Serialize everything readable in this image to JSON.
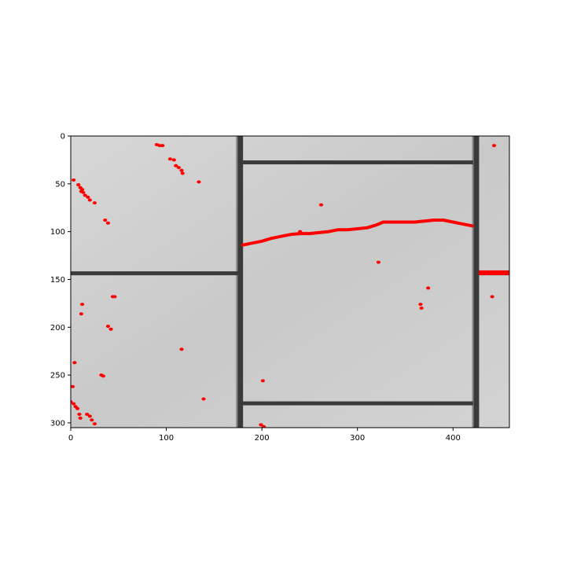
{
  "image": {
    "kind": "annotated-photo",
    "subject": "tile-floor",
    "overlay_color": "#ff0000"
  },
  "axes": {
    "xlim": [
      0,
      459
    ],
    "ylim": [
      305,
      0
    ],
    "x_ticks": [
      {
        "value": 0,
        "label": "0"
      },
      {
        "value": 100,
        "label": "100"
      },
      {
        "value": 200,
        "label": "200"
      },
      {
        "value": 300,
        "label": "300"
      },
      {
        "value": 400,
        "label": "400"
      }
    ],
    "y_ticks": [
      {
        "value": 0,
        "label": "0"
      },
      {
        "value": 50,
        "label": "50"
      },
      {
        "value": 100,
        "label": "100"
      },
      {
        "value": 150,
        "label": "150"
      },
      {
        "value": 200,
        "label": "200"
      },
      {
        "value": 250,
        "label": "250"
      },
      {
        "value": 300,
        "label": "300"
      }
    ]
  },
  "scene": {
    "grout_color": "#3a3a3a",
    "tile_color": "#cfcfcf",
    "vertical_grout_x": [
      177,
      424
    ],
    "horizontal_grout_segments": [
      {
        "x0": 0,
        "x1": 176,
        "y": 144
      },
      {
        "x0": 180,
        "x1": 421,
        "y": 28
      },
      {
        "x0": 180,
        "x1": 421,
        "y": 280
      },
      {
        "x0": 426,
        "x1": 459,
        "y": 144
      }
    ]
  },
  "detections": {
    "crack_line": [
      [
        180,
        114
      ],
      [
        190,
        112
      ],
      [
        200,
        110
      ],
      [
        210,
        107
      ],
      [
        220,
        105
      ],
      [
        230,
        103
      ],
      [
        240,
        102
      ],
      [
        250,
        102
      ],
      [
        260,
        101
      ],
      [
        270,
        100
      ],
      [
        280,
        98
      ],
      [
        290,
        98
      ],
      [
        300,
        97
      ],
      [
        310,
        96
      ],
      [
        320,
        93
      ],
      [
        327,
        90
      ],
      [
        340,
        90
      ],
      [
        350,
        90
      ],
      [
        360,
        90
      ],
      [
        370,
        89
      ],
      [
        380,
        88
      ],
      [
        390,
        88
      ],
      [
        400,
        90
      ],
      [
        410,
        92
      ],
      [
        420,
        94
      ]
    ],
    "right_bar": {
      "x0": 427,
      "x1": 459,
      "y": 143
    },
    "points": [
      [
        90,
        9
      ],
      [
        93,
        10
      ],
      [
        96,
        10
      ],
      [
        104,
        24
      ],
      [
        108,
        25
      ],
      [
        110,
        31
      ],
      [
        113,
        33
      ],
      [
        116,
        36
      ],
      [
        117,
        39
      ],
      [
        134,
        48
      ],
      [
        3,
        46
      ],
      [
        8,
        51
      ],
      [
        10,
        54
      ],
      [
        11,
        58
      ],
      [
        12,
        56
      ],
      [
        13,
        59
      ],
      [
        15,
        62
      ],
      [
        18,
        64
      ],
      [
        20,
        67
      ],
      [
        25,
        70
      ],
      [
        36,
        88
      ],
      [
        39,
        91
      ],
      [
        12,
        176
      ],
      [
        11,
        186
      ],
      [
        44,
        168
      ],
      [
        46,
        168
      ],
      [
        39,
        199
      ],
      [
        42,
        202
      ],
      [
        116,
        223
      ],
      [
        32,
        250
      ],
      [
        34,
        251
      ],
      [
        139,
        275
      ],
      [
        4,
        237
      ],
      [
        2,
        262
      ],
      [
        0,
        278
      ],
      [
        3,
        280
      ],
      [
        5,
        283
      ],
      [
        7,
        285
      ],
      [
        9,
        291
      ],
      [
        10,
        295
      ],
      [
        17,
        291
      ],
      [
        20,
        293
      ],
      [
        22,
        297
      ],
      [
        25,
        301
      ],
      [
        262,
        72
      ],
      [
        240,
        100
      ],
      [
        322,
        132
      ],
      [
        201,
        256
      ],
      [
        199,
        302
      ],
      [
        202,
        304
      ],
      [
        374,
        159
      ],
      [
        366,
        176
      ],
      [
        367,
        180
      ],
      [
        441,
        168
      ],
      [
        443,
        10
      ]
    ]
  }
}
